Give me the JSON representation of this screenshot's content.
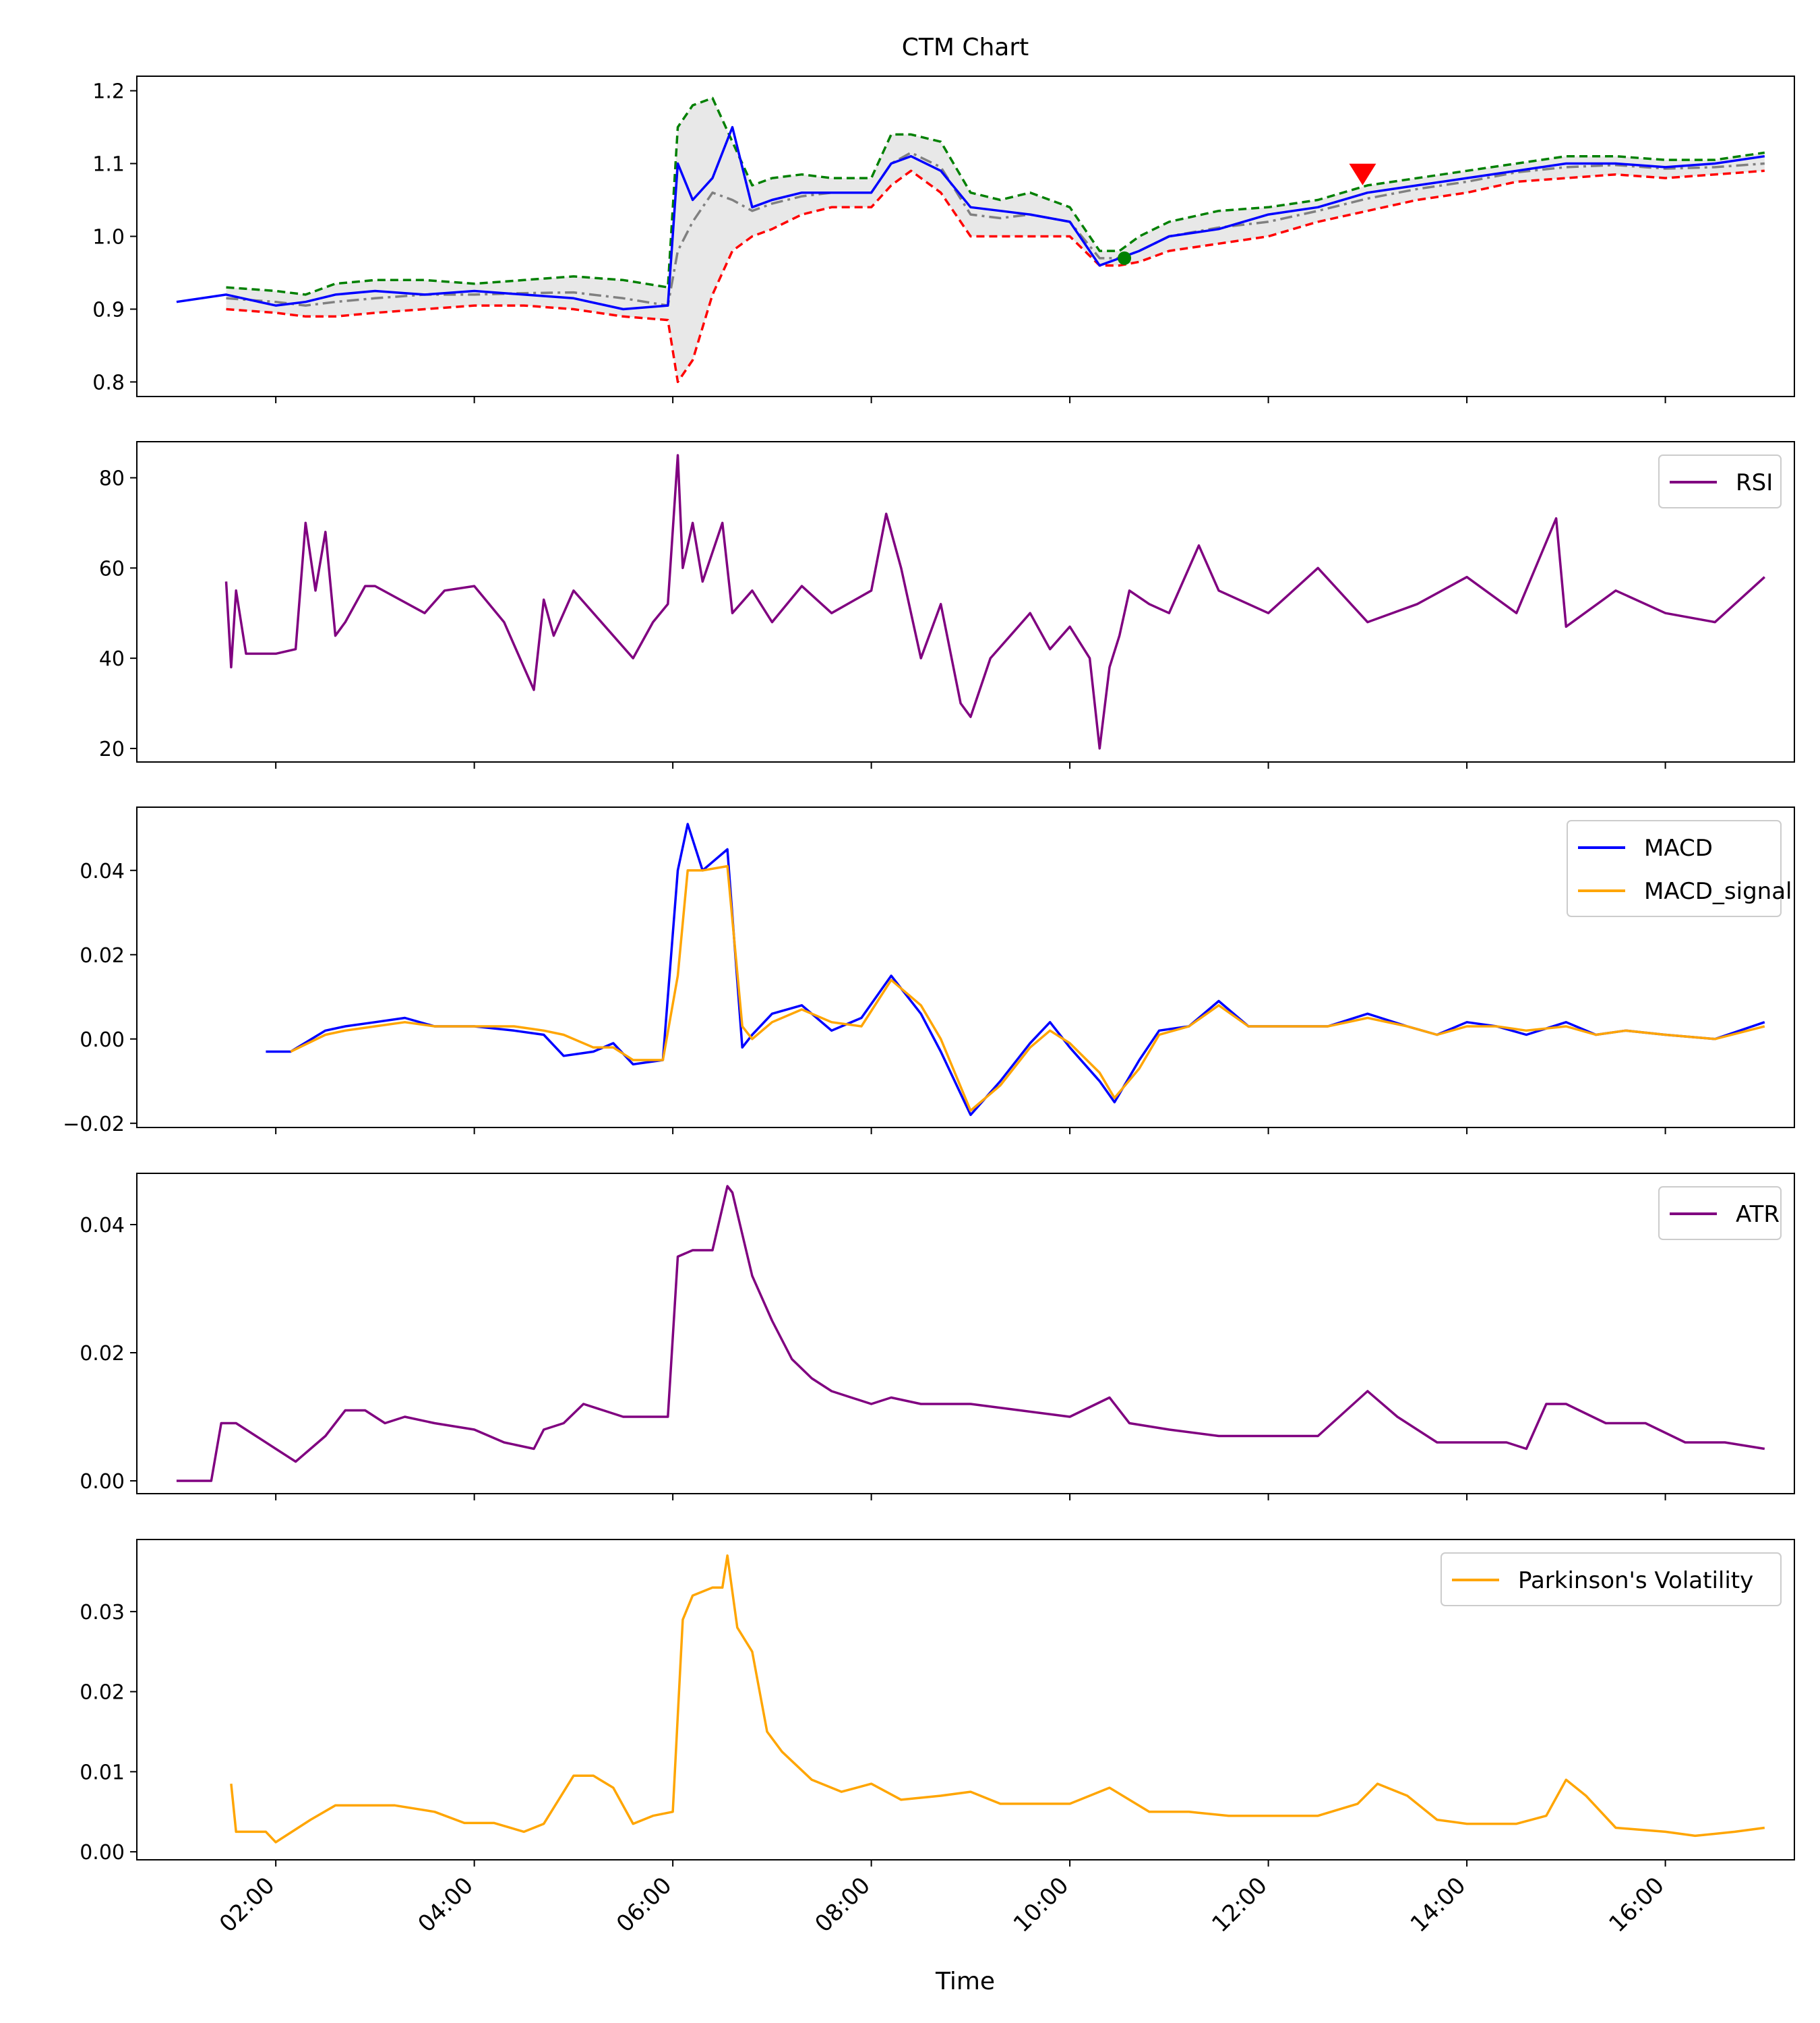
{
  "colors": {
    "price": "#0000ff",
    "upper_band": "#008000",
    "lower_band": "#ff0000",
    "middle_band": "#808080",
    "band_fill": "#e8e8e8",
    "rsi": "#800080",
    "macd": "#0000ff",
    "macd_signal": "#ffa500",
    "atr": "#800080",
    "parkinson": "#ffa500",
    "sell_marker": "#ff0000",
    "buy_marker": "#008000"
  },
  "x_axis": {
    "label": "Time",
    "tick_labels": [
      "02:00",
      "04:00",
      "06:00",
      "08:00",
      "10:00",
      "12:00",
      "14:00",
      "16:00"
    ],
    "tick_hours": [
      2,
      4,
      6,
      8,
      10,
      12,
      14,
      16
    ],
    "range_hours": [
      0.6,
      17.3
    ]
  },
  "chart_data": [
    {
      "type": "line",
      "title": "CTM Chart",
      "ylim": [
        0.78,
        1.22
      ],
      "yticks": [
        0.8,
        0.9,
        1.0,
        1.1,
        1.2
      ],
      "ytick_labels": [
        "0.8",
        "0.9",
        "1.0",
        "1.1",
        "1.2"
      ],
      "x": [
        1.0,
        1.5,
        2.0,
        2.3,
        2.6,
        3.0,
        3.5,
        4.0,
        4.5,
        5.0,
        5.5,
        5.95,
        6.05,
        6.2,
        6.4,
        6.6,
        6.8,
        7.0,
        7.3,
        7.6,
        8.0,
        8.2,
        8.4,
        8.7,
        9.0,
        9.3,
        9.6,
        10.0,
        10.3,
        10.5,
        10.7,
        11.0,
        11.5,
        12.0,
        12.5,
        13.0,
        13.5,
        14.0,
        14.5,
        15.0,
        15.5,
        16.0,
        16.5,
        17.0
      ],
      "series": [
        {
          "key": "price",
          "values": [
            0.91,
            0.92,
            0.905,
            0.91,
            0.92,
            0.925,
            0.92,
            0.925,
            0.92,
            0.915,
            0.9,
            0.905,
            1.1,
            1.05,
            1.08,
            1.15,
            1.04,
            1.05,
            1.06,
            1.06,
            1.06,
            1.1,
            1.11,
            1.09,
            1.04,
            1.035,
            1.03,
            1.02,
            0.96,
            0.97,
            0.98,
            1.0,
            1.01,
            1.03,
            1.04,
            1.06,
            1.07,
            1.08,
            1.09,
            1.1,
            1.1,
            1.095,
            1.1,
            1.11
          ]
        },
        {
          "key": "upper_band",
          "values": [
            null,
            0.93,
            0.925,
            0.92,
            0.935,
            0.94,
            0.94,
            0.935,
            0.94,
            0.945,
            0.94,
            0.93,
            1.15,
            1.18,
            1.19,
            1.13,
            1.07,
            1.08,
            1.085,
            1.08,
            1.08,
            1.14,
            1.14,
            1.13,
            1.06,
            1.05,
            1.06,
            1.04,
            0.98,
            0.98,
            1.0,
            1.02,
            1.035,
            1.04,
            1.05,
            1.07,
            1.08,
            1.09,
            1.1,
            1.11,
            1.11,
            1.105,
            1.105,
            1.115
          ]
        },
        {
          "key": "lower_band",
          "values": [
            null,
            0.9,
            0.895,
            0.89,
            0.89,
            0.895,
            0.9,
            0.905,
            0.905,
            0.9,
            0.89,
            0.885,
            0.8,
            0.83,
            0.92,
            0.98,
            1.0,
            1.01,
            1.03,
            1.04,
            1.04,
            1.07,
            1.09,
            1.06,
            1.0,
            1.0,
            1.0,
            1.0,
            0.96,
            0.96,
            0.965,
            0.98,
            0.99,
            1.0,
            1.02,
            1.035,
            1.05,
            1.06,
            1.075,
            1.08,
            1.085,
            1.08,
            1.085,
            1.09
          ]
        },
        {
          "key": "middle_band",
          "values": [
            null,
            0.915,
            0.91,
            0.905,
            0.91,
            0.915,
            0.92,
            0.92,
            0.922,
            0.923,
            0.915,
            0.905,
            0.98,
            1.02,
            1.06,
            1.05,
            1.035,
            1.045,
            1.055,
            1.06,
            1.06,
            1.1,
            1.115,
            1.095,
            1.03,
            1.025,
            1.03,
            1.02,
            0.97,
            0.97,
            0.98,
            1.0,
            1.012,
            1.02,
            1.035,
            1.052,
            1.065,
            1.075,
            1.088,
            1.095,
            1.098,
            1.093,
            1.095,
            1.1
          ]
        }
      ],
      "markers": [
        {
          "key": "sell",
          "x": 12.95,
          "y": 1.085,
          "shape": "triangle-down"
        },
        {
          "key": "buy",
          "x": 10.55,
          "y": 0.97,
          "shape": "circle"
        }
      ]
    },
    {
      "type": "line",
      "ylim": [
        17,
        88
      ],
      "yticks": [
        20,
        40,
        60,
        80
      ],
      "ytick_labels": [
        "20",
        "40",
        "60",
        "80"
      ],
      "legend": "top-right",
      "x": [
        1.5,
        1.55,
        1.6,
        1.7,
        2.0,
        2.2,
        2.3,
        2.4,
        2.5,
        2.6,
        2.7,
        2.9,
        3.0,
        3.5,
        3.7,
        4.0,
        4.3,
        4.6,
        4.7,
        4.8,
        5.0,
        5.2,
        5.4,
        5.6,
        5.8,
        5.95,
        6.05,
        6.1,
        6.2,
        6.3,
        6.5,
        6.6,
        6.8,
        7.0,
        7.3,
        7.6,
        8.0,
        8.15,
        8.3,
        8.5,
        8.7,
        8.9,
        9.0,
        9.2,
        9.4,
        9.6,
        9.8,
        10.0,
        10.2,
        10.3,
        10.4,
        10.5,
        10.6,
        10.8,
        11.0,
        11.3,
        11.5,
        12.0,
        12.5,
        13.0,
        13.5,
        14.0,
        14.5,
        14.9,
        15.0,
        15.5,
        16.0,
        16.5,
        17.0
      ],
      "series": [
        {
          "key": "rsi",
          "name": "RSI",
          "values": [
            57,
            38,
            55,
            41,
            41,
            42,
            70,
            55,
            68,
            45,
            48,
            56,
            56,
            50,
            55,
            56,
            48,
            33,
            53,
            45,
            55,
            50,
            45,
            40,
            48,
            52,
            85,
            60,
            70,
            57,
            70,
            50,
            55,
            48,
            56,
            50,
            55,
            72,
            60,
            40,
            52,
            30,
            27,
            40,
            45,
            50,
            42,
            47,
            40,
            20,
            38,
            45,
            55,
            52,
            50,
            65,
            55,
            50,
            60,
            48,
            52,
            58,
            50,
            71,
            47,
            55,
            50,
            48,
            58
          ]
        }
      ]
    },
    {
      "type": "line",
      "ylim": [
        -0.021,
        0.055
      ],
      "yticks": [
        -0.02,
        0.0,
        0.02,
        0.04
      ],
      "ytick_labels": [
        "−0.02",
        "0.00",
        "0.02",
        "0.04"
      ],
      "legend": "top-right",
      "x": [
        1.9,
        2.15,
        2.5,
        2.7,
        3.0,
        3.3,
        3.6,
        4.0,
        4.4,
        4.7,
        4.9,
        5.2,
        5.4,
        5.6,
        5.9,
        6.05,
        6.15,
        6.3,
        6.55,
        6.7,
        6.8,
        7.0,
        7.3,
        7.6,
        7.9,
        8.2,
        8.5,
        8.7,
        9.0,
        9.3,
        9.6,
        9.8,
        10.0,
        10.3,
        10.45,
        10.7,
        10.9,
        11.2,
        11.5,
        11.8,
        12.2,
        12.6,
        13.0,
        13.4,
        13.7,
        14.0,
        14.3,
        14.6,
        15.0,
        15.3,
        15.6,
        16.0,
        16.5,
        17.0
      ],
      "series": [
        {
          "key": "macd",
          "name": "MACD",
          "values": [
            -0.003,
            -0.003,
            0.002,
            0.003,
            0.004,
            0.005,
            0.003,
            0.003,
            0.002,
            0.001,
            -0.004,
            -0.003,
            -0.001,
            -0.006,
            -0.005,
            0.04,
            0.051,
            0.04,
            0.045,
            -0.002,
            0.001,
            0.006,
            0.008,
            0.002,
            0.005,
            0.015,
            0.006,
            -0.003,
            -0.018,
            -0.01,
            -0.001,
            0.004,
            -0.002,
            -0.01,
            -0.015,
            -0.005,
            0.002,
            0.003,
            0.009,
            0.003,
            0.003,
            0.003,
            0.006,
            0.003,
            0.001,
            0.004,
            0.003,
            0.001,
            0.004,
            0.001,
            0.002,
            0.001,
            0.0,
            0.004
          ]
        },
        {
          "key": "macd_signal",
          "name": "MACD_signal",
          "values": [
            null,
            -0.003,
            0.001,
            0.002,
            0.003,
            0.004,
            0.003,
            0.003,
            0.003,
            0.002,
            0.001,
            -0.002,
            -0.002,
            -0.005,
            -0.005,
            0.015,
            0.04,
            0.04,
            0.041,
            0.003,
            0.0,
            0.004,
            0.007,
            0.004,
            0.003,
            0.014,
            0.008,
            0.0,
            -0.017,
            -0.011,
            -0.002,
            0.002,
            -0.001,
            -0.008,
            -0.014,
            -0.007,
            0.001,
            0.003,
            0.008,
            0.003,
            0.003,
            0.003,
            0.005,
            0.003,
            0.001,
            0.003,
            0.003,
            0.002,
            0.003,
            0.001,
            0.002,
            0.001,
            0.0,
            0.003
          ]
        }
      ]
    },
    {
      "type": "line",
      "ylim": [
        -0.002,
        0.048
      ],
      "yticks": [
        0.0,
        0.02,
        0.04
      ],
      "ytick_labels": [
        "0.00",
        "0.02",
        "0.04"
      ],
      "legend": "top-right",
      "x": [
        1.0,
        1.35,
        1.45,
        1.6,
        1.8,
        2.0,
        2.2,
        2.35,
        2.5,
        2.7,
        2.9,
        3.1,
        3.3,
        3.6,
        4.0,
        4.3,
        4.6,
        4.7,
        4.9,
        5.1,
        5.3,
        5.5,
        5.8,
        5.95,
        6.05,
        6.2,
        6.4,
        6.55,
        6.6,
        6.8,
        7.0,
        7.2,
        7.4,
        7.6,
        8.0,
        8.2,
        8.5,
        9.0,
        9.5,
        10.0,
        10.4,
        10.6,
        11.0,
        11.5,
        12.0,
        12.5,
        13.0,
        13.3,
        13.7,
        14.0,
        14.4,
        14.6,
        14.8,
        15.0,
        15.4,
        15.8,
        16.2,
        16.6,
        17.0
      ],
      "series": [
        {
          "key": "atr",
          "name": "ATR",
          "values": [
            0.0,
            0.0,
            0.009,
            0.009,
            0.007,
            0.005,
            0.003,
            0.005,
            0.007,
            0.011,
            0.011,
            0.009,
            0.01,
            0.009,
            0.008,
            0.006,
            0.005,
            0.008,
            0.009,
            0.012,
            0.011,
            0.01,
            0.01,
            0.01,
            0.035,
            0.036,
            0.036,
            0.046,
            0.045,
            0.032,
            0.025,
            0.019,
            0.016,
            0.014,
            0.012,
            0.013,
            0.012,
            0.012,
            0.011,
            0.01,
            0.013,
            0.009,
            0.008,
            0.007,
            0.007,
            0.007,
            0.014,
            0.01,
            0.006,
            0.006,
            0.006,
            0.005,
            0.012,
            0.012,
            0.009,
            0.009,
            0.006,
            0.006,
            0.005
          ]
        }
      ]
    },
    {
      "type": "line",
      "ylim": [
        -0.001,
        0.039
      ],
      "yticks": [
        0.0,
        0.01,
        0.02,
        0.03
      ],
      "ytick_labels": [
        "0.00",
        "0.01",
        "0.02",
        "0.03"
      ],
      "legend": "top-right",
      "x": [
        1.55,
        1.6,
        1.9,
        2.0,
        2.35,
        2.6,
        2.9,
        3.2,
        3.6,
        3.9,
        4.2,
        4.5,
        4.7,
        5.0,
        5.2,
        5.4,
        5.6,
        5.8,
        6.0,
        6.1,
        6.2,
        6.4,
        6.5,
        6.55,
        6.65,
        6.8,
        6.95,
        7.1,
        7.4,
        7.7,
        8.0,
        8.3,
        8.7,
        9.0,
        9.3,
        9.6,
        10.0,
        10.4,
        10.8,
        11.2,
        11.6,
        12.0,
        12.5,
        12.9,
        13.1,
        13.4,
        13.7,
        14.0,
        14.5,
        14.8,
        15.0,
        15.2,
        15.5,
        16.0,
        16.3,
        16.7,
        17.0
      ],
      "series": [
        {
          "key": "parkinson",
          "name": "Parkinson's Volatility",
          "values": [
            0.0085,
            0.0025,
            0.0025,
            0.0012,
            0.004,
            0.0058,
            0.0058,
            0.0058,
            0.005,
            0.0036,
            0.0036,
            0.0025,
            0.0035,
            0.0095,
            0.0095,
            0.008,
            0.0035,
            0.0045,
            0.005,
            0.029,
            0.032,
            0.033,
            0.033,
            0.037,
            0.028,
            0.025,
            0.015,
            0.0125,
            0.009,
            0.0075,
            0.0085,
            0.0065,
            0.007,
            0.0075,
            0.006,
            0.006,
            0.006,
            0.008,
            0.005,
            0.005,
            0.0045,
            0.0045,
            0.0045,
            0.006,
            0.0085,
            0.007,
            0.004,
            0.0035,
            0.0035,
            0.0045,
            0.009,
            0.007,
            0.003,
            0.0025,
            0.002,
            0.0025,
            0.003
          ]
        }
      ]
    }
  ]
}
